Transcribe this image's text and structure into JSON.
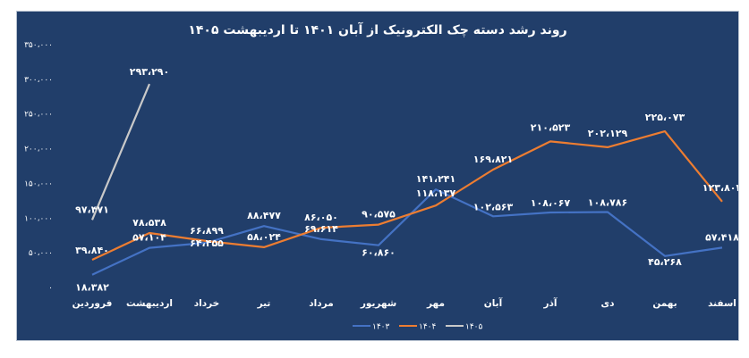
{
  "chart_data": {
    "type": "line",
    "title": "روند رشد دسته چک الکترونیک از آبان ۱۴۰۱ تا اردیبهشت ۱۴۰۵",
    "categories": [
      "فروردین",
      "اردیبهشت",
      "خرداد",
      "تیر",
      "مرداد",
      "شهریور",
      "مهر",
      "آبان",
      "آذر",
      "دی",
      "بهمن",
      "اسفند"
    ],
    "y_tick_labels": [
      "۰",
      "۵۰،۰۰۰",
      "۱۰۰،۰۰۰",
      "۱۵۰،۰۰۰",
      "۲۰۰،۰۰۰",
      "۲۵۰،۰۰۰",
      "۳۰۰،۰۰۰",
      "۳۵۰،۰۰۰"
    ],
    "ylim": [
      0,
      350000
    ],
    "grid": false,
    "legend_position": "bottom",
    "series": [
      {
        "name": "۱۴۰۳",
        "color": "#4472c4",
        "values": [
          18382,
          57104,
          64455,
          88477,
          69614,
          60860,
          141241,
          102563,
          108067,
          108786,
          45268,
          57418
        ],
        "labels": [
          "۱۸،۳۸۲",
          "۵۷،۱۰۴",
          "۶۴،۴۵۵",
          "۸۸،۴۷۷",
          "۶۹،۶۱۴",
          "۶۰،۸۶۰",
          "۱۴۱،۲۴۱",
          "۱۰۲،۵۶۳",
          "۱۰۸،۰۶۷",
          "۱۰۸،۷۸۶",
          "۴۵،۲۶۸",
          "۵۷،۴۱۸"
        ]
      },
      {
        "name": "۱۴۰۴",
        "color": "#ed7d31",
        "values": [
          39840,
          78538,
          66899,
          58024,
          86050,
          90575,
          118137,
          169821,
          210523,
          202129,
          225073,
          123802
        ],
        "labels": [
          "۳۹،۸۴۰",
          "۷۸،۵۳۸",
          "۶۶،۸۹۹",
          "۵۸،۰۲۴",
          "۸۶،۰۵۰",
          "۹۰،۵۷۵",
          "۱۱۸،۱۳۷",
          "۱۶۹،۸۲۱",
          "۲۱۰،۵۲۳",
          "۲۰۲،۱۲۹",
          "۲۲۵،۰۷۳",
          "۱۲۳،۸۰۲"
        ]
      },
      {
        "name": "۱۴۰۵",
        "color": "#c9c9c9",
        "values": [
          97471,
          293290,
          null,
          null,
          null,
          null,
          null,
          null,
          null,
          null,
          null,
          null
        ],
        "labels": [
          "۹۷،۴۷۱",
          "۲۹۳،۲۹۰",
          null,
          null,
          null,
          null,
          null,
          null,
          null,
          null,
          null,
          null
        ]
      }
    ]
  }
}
